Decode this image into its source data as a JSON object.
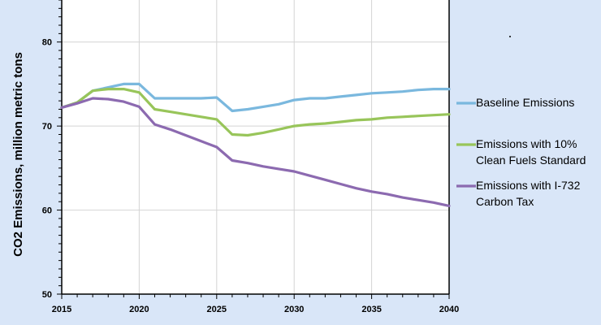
{
  "chart_data": {
    "type": "line",
    "title": "",
    "xlabel": "",
    "ylabel": "CO2 Emissions, million metric tons",
    "xlim": [
      2015,
      2040
    ],
    "ylim": [
      50,
      85
    ],
    "x_ticks": [
      2015,
      2020,
      2025,
      2030,
      2035,
      2040
    ],
    "y_ticks": [
      50,
      60,
      70,
      80
    ],
    "grid": "vertical and horizontal",
    "legend_position": "right",
    "x": [
      2015,
      2016,
      2017,
      2018,
      2019,
      2020,
      2021,
      2022,
      2023,
      2024,
      2025,
      2026,
      2027,
      2028,
      2029,
      2030,
      2031,
      2032,
      2033,
      2034,
      2035,
      2036,
      2037,
      2038,
      2039,
      2040
    ],
    "series": [
      {
        "name": "Baseline Emissions",
        "color": "#7ab8de",
        "legend_lines": [
          "Baseline Emissions"
        ],
        "values": [
          72.2,
          72.8,
          74.2,
          74.6,
          75.0,
          75.0,
          73.3,
          73.3,
          73.3,
          73.3,
          73.4,
          71.8,
          72.0,
          72.3,
          72.6,
          73.1,
          73.3,
          73.3,
          73.5,
          73.7,
          73.9,
          74.0,
          74.1,
          74.3,
          74.4,
          74.4
        ]
      },
      {
        "name": "Emissions with 10% Clean Fuels Standard",
        "color": "#98c55a",
        "legend_lines": [
          "Emissions with 10%",
          "Clean Fuels Standard"
        ],
        "values": [
          72.2,
          72.8,
          74.2,
          74.4,
          74.4,
          74.0,
          72.0,
          71.7,
          71.4,
          71.1,
          70.8,
          69.0,
          68.9,
          69.2,
          69.6,
          70.0,
          70.2,
          70.3,
          70.5,
          70.7,
          70.8,
          71.0,
          71.1,
          71.2,
          71.3,
          71.4
        ]
      },
      {
        "name": "Emissions with I-732 Carbon Tax",
        "color": "#8c6ab0",
        "legend_lines": [
          "Emissions with I-732",
          "Carbon Tax"
        ],
        "values": [
          72.2,
          72.7,
          73.3,
          73.2,
          72.9,
          72.3,
          70.2,
          69.6,
          68.9,
          68.2,
          67.5,
          65.9,
          65.6,
          65.2,
          64.9,
          64.6,
          64.1,
          63.6,
          63.1,
          62.6,
          62.2,
          61.9,
          61.5,
          61.2,
          60.9,
          60.5
        ]
      }
    ]
  }
}
